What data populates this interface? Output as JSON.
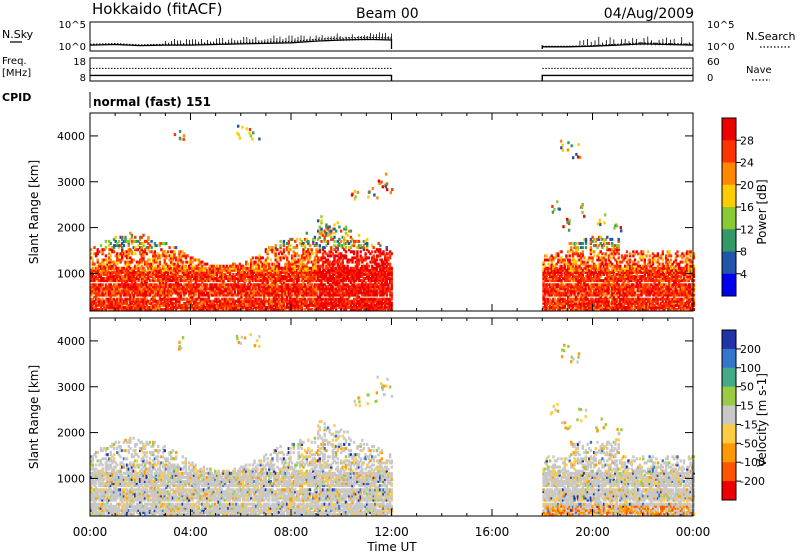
{
  "header": {
    "title": "Hokkaido (fitACF)",
    "beam": "Beam 00",
    "date": "04/Aug/2009"
  },
  "nsky_panel": {
    "left_label": "N.Sky",
    "left_ticks": [
      "10^5",
      "10^0"
    ],
    "right_label": "N.Search",
    "right_ticks": [
      "10^5",
      "10^0"
    ]
  },
  "freq_panel": {
    "left_label_1": "Freq.",
    "left_label_2": "[MHz]",
    "left_ticks": [
      "18",
      "8"
    ],
    "right_label": "Nave",
    "right_ticks": [
      "60",
      "0"
    ]
  },
  "cpid_panel": {
    "label": "CPID",
    "mode_text": "normal (fast) 151"
  },
  "power_colorbar": {
    "label": "Power [dB]",
    "ticks": [
      "28",
      "24",
      "20",
      "16",
      "12",
      "8",
      "4"
    ],
    "colors": [
      "#ee0000",
      "#ff3300",
      "#ff8800",
      "#ffcc00",
      "#88cc33",
      "#339966",
      "#2255aa",
      "#0000ee"
    ]
  },
  "velocity_colorbar": {
    "label": "Velocity [m s-1]",
    "ticks": [
      "200",
      "100",
      "50",
      "15",
      "-15",
      "-50",
      "-100",
      "-200"
    ],
    "colors": [
      "#2233aa",
      "#3377cc",
      "#44aa88",
      "#99cc44",
      "#c8c8c8",
      "#ffcc44",
      "#ff9900",
      "#ff5500",
      "#ee0000"
    ]
  },
  "chart_data": {
    "type": "heatmap",
    "xlabel": "Time UT",
    "x_ticks": [
      "00:00",
      "04:00",
      "08:00",
      "12:00",
      "16:00",
      "20:00",
      "00:00"
    ],
    "xlim_hours": [
      0,
      24
    ],
    "ylabel": "Slant Range [km]",
    "y_ticks": [
      4000,
      3000,
      2000,
      1000
    ],
    "ylim_km": [
      180,
      4500
    ],
    "data_gap_hours": [
      12,
      18
    ],
    "nsky_series": [
      {
        "t": 0,
        "v": 0.35
      },
      {
        "t": 1,
        "v": 0.4
      },
      {
        "t": 2,
        "v": 0.3
      },
      {
        "t": 3,
        "v": 0.35
      },
      {
        "t": 4,
        "v": 0.35
      },
      {
        "t": 5,
        "v": 0.4
      },
      {
        "t": 6,
        "v": 0.45
      },
      {
        "t": 7,
        "v": 0.5
      },
      {
        "t": 8,
        "v": 0.55
      },
      {
        "t": 9,
        "v": 0.7
      },
      {
        "t": 10,
        "v": 0.8
      },
      {
        "t": 11,
        "v": 0.85
      },
      {
        "t": 12,
        "v": 0.8
      },
      {
        "t": 18,
        "v": 0.2
      },
      {
        "t": 19,
        "v": 0.2
      },
      {
        "t": 20,
        "v": 0.25
      },
      {
        "t": 21,
        "v": 0.35
      },
      {
        "t": 22,
        "v": 0.45
      },
      {
        "t": 23,
        "v": 0.4
      },
      {
        "t": 24,
        "v": 0.35
      }
    ],
    "freq_mhz": 10.4,
    "nave_level": 0.55
  }
}
